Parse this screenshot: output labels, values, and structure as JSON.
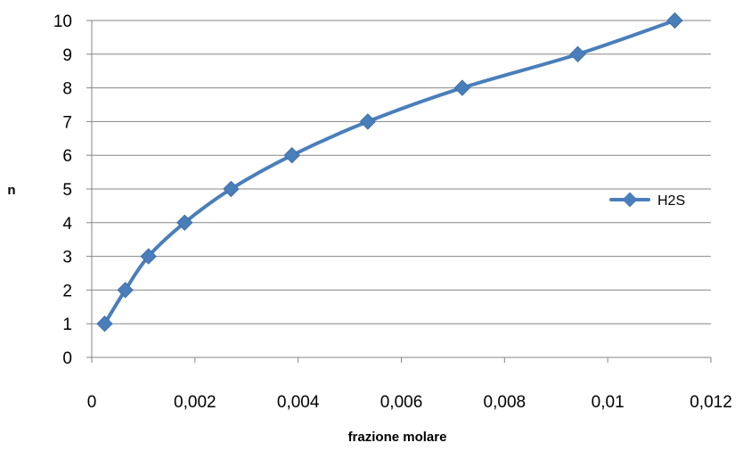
{
  "chart_data": {
    "type": "scatter",
    "title": "",
    "xlabel": "frazione molare",
    "ylabel": "n",
    "xlim": [
      0,
      0.012
    ],
    "ylim": [
      0,
      10
    ],
    "x_ticks": [
      "0",
      "0,002",
      "0,004",
      "0,006",
      "0,008",
      "0,01",
      "0,012"
    ],
    "y_ticks": [
      "0",
      "1",
      "2",
      "3",
      "4",
      "5",
      "6",
      "7",
      "8",
      "9",
      "10"
    ],
    "grid": "horizontal",
    "legend_position": "right",
    "line": "smooth",
    "marker": "diamond",
    "series": [
      {
        "name": "H2S",
        "color": "#4a7ebb",
        "x": [
          0.00025,
          0.00065,
          0.0011,
          0.0018,
          0.0027,
          0.00388,
          0.00535,
          0.00718,
          0.00942,
          0.0113
        ],
        "y": [
          1,
          2,
          3,
          4,
          5,
          6,
          7,
          8,
          9,
          10
        ]
      }
    ]
  }
}
